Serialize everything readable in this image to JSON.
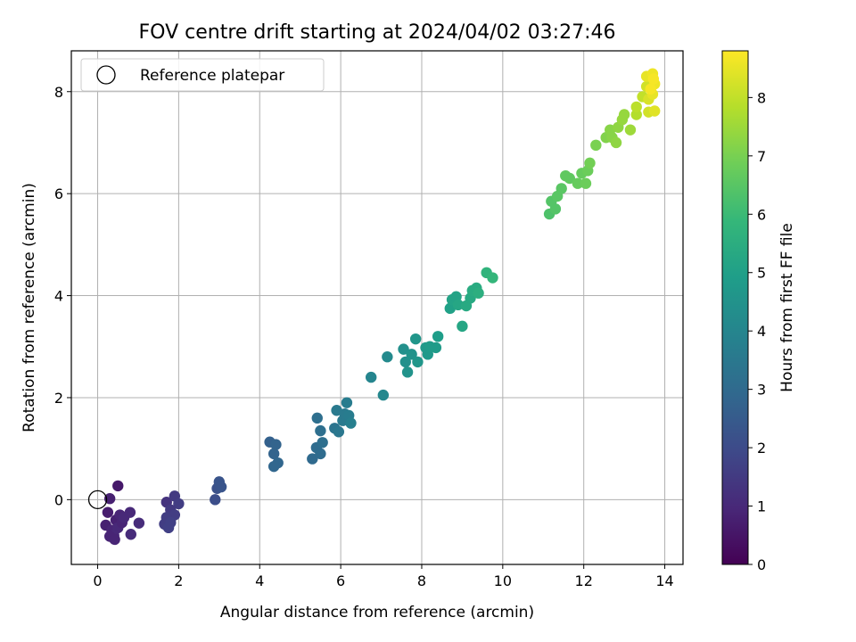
{
  "chart_data": {
    "type": "scatter",
    "title": "FOV centre drift starting at 2024/04/02 03:27:46",
    "xlabel": "Angular distance from reference (arcmin)",
    "ylabel": "Rotation from reference (arcmin)",
    "xlim": [
      -0.65,
      14.45
    ],
    "ylim": [
      -1.27,
      8.8
    ],
    "x_ticks": [
      0,
      2,
      4,
      6,
      8,
      10,
      12,
      14
    ],
    "y_ticks": [
      0,
      2,
      4,
      6,
      8
    ],
    "grid": true,
    "legend": {
      "location": "top-left",
      "entries": [
        "Reference platepar"
      ]
    },
    "reference_point": {
      "x": 0,
      "y": 0
    },
    "colorbar": {
      "label": "Hours from first FF file",
      "range": [
        0,
        8.8
      ],
      "ticks": [
        0,
        1,
        2,
        3,
        4,
        5,
        6,
        7,
        8
      ],
      "colormap": "viridis"
    },
    "points": [
      {
        "x": 0.5,
        "y": 0.27,
        "h": 0.6
      },
      {
        "x": 0.3,
        "y": 0.02,
        "h": 0.8
      },
      {
        "x": 0.25,
        "y": -0.25,
        "h": 0.7
      },
      {
        "x": 0.45,
        "y": -0.4,
        "h": 0.8
      },
      {
        "x": 0.55,
        "y": -0.3,
        "h": 0.9
      },
      {
        "x": 0.2,
        "y": -0.5,
        "h": 0.8
      },
      {
        "x": 0.35,
        "y": -0.6,
        "h": 0.9
      },
      {
        "x": 0.5,
        "y": -0.55,
        "h": 1.0
      },
      {
        "x": 0.4,
        "y": -0.7,
        "h": 1.0
      },
      {
        "x": 0.3,
        "y": -0.72,
        "h": 0.9
      },
      {
        "x": 0.42,
        "y": -0.78,
        "h": 0.9
      },
      {
        "x": 0.6,
        "y": -0.45,
        "h": 0.9
      },
      {
        "x": 0.65,
        "y": -0.35,
        "h": 1.0
      },
      {
        "x": 0.8,
        "y": -0.25,
        "h": 1.0
      },
      {
        "x": 0.82,
        "y": -0.68,
        "h": 1.1
      },
      {
        "x": 1.02,
        "y": -0.46,
        "h": 1.1
      },
      {
        "x": 1.7,
        "y": -0.05,
        "h": 1.3
      },
      {
        "x": 1.9,
        "y": 0.07,
        "h": 1.5
      },
      {
        "x": 2.0,
        "y": -0.08,
        "h": 1.6
      },
      {
        "x": 1.8,
        "y": -0.2,
        "h": 1.5
      },
      {
        "x": 1.9,
        "y": -0.3,
        "h": 1.6
      },
      {
        "x": 1.7,
        "y": -0.35,
        "h": 1.6
      },
      {
        "x": 1.65,
        "y": -0.48,
        "h": 1.6
      },
      {
        "x": 1.75,
        "y": -0.55,
        "h": 1.7
      },
      {
        "x": 1.8,
        "y": -0.45,
        "h": 1.7
      },
      {
        "x": 2.9,
        "y": 0.0,
        "h": 2.1
      },
      {
        "x": 2.95,
        "y": 0.22,
        "h": 2.2
      },
      {
        "x": 3.0,
        "y": 0.35,
        "h": 2.3
      },
      {
        "x": 3.05,
        "y": 0.25,
        "h": 2.3
      },
      {
        "x": 4.25,
        "y": 1.13,
        "h": 2.7
      },
      {
        "x": 4.4,
        "y": 1.08,
        "h": 2.8
      },
      {
        "x": 4.35,
        "y": 0.9,
        "h": 2.8
      },
      {
        "x": 4.45,
        "y": 0.72,
        "h": 2.9
      },
      {
        "x": 4.35,
        "y": 0.65,
        "h": 2.9
      },
      {
        "x": 5.3,
        "y": 0.8,
        "h": 3.0
      },
      {
        "x": 5.4,
        "y": 1.02,
        "h": 3.1
      },
      {
        "x": 5.5,
        "y": 0.9,
        "h": 3.1
      },
      {
        "x": 5.55,
        "y": 1.12,
        "h": 3.2
      },
      {
        "x": 5.5,
        "y": 1.35,
        "h": 3.2
      },
      {
        "x": 5.42,
        "y": 1.6,
        "h": 3.2
      },
      {
        "x": 5.85,
        "y": 1.4,
        "h": 3.4
      },
      {
        "x": 5.95,
        "y": 1.33,
        "h": 3.5
      },
      {
        "x": 5.9,
        "y": 1.75,
        "h": 3.6
      },
      {
        "x": 6.05,
        "y": 1.55,
        "h": 3.6
      },
      {
        "x": 6.1,
        "y": 1.68,
        "h": 3.6
      },
      {
        "x": 6.15,
        "y": 1.9,
        "h": 3.7
      },
      {
        "x": 6.2,
        "y": 1.65,
        "h": 3.7
      },
      {
        "x": 6.25,
        "y": 1.5,
        "h": 3.8
      },
      {
        "x": 6.75,
        "y": 2.4,
        "h": 4.0
      },
      {
        "x": 7.05,
        "y": 2.05,
        "h": 4.1
      },
      {
        "x": 7.15,
        "y": 2.8,
        "h": 4.2
      },
      {
        "x": 7.55,
        "y": 2.95,
        "h": 4.4
      },
      {
        "x": 7.6,
        "y": 2.7,
        "h": 4.4
      },
      {
        "x": 7.65,
        "y": 2.5,
        "h": 4.5
      },
      {
        "x": 7.75,
        "y": 2.85,
        "h": 4.5
      },
      {
        "x": 7.85,
        "y": 3.15,
        "h": 4.6
      },
      {
        "x": 7.9,
        "y": 2.7,
        "h": 4.6
      },
      {
        "x": 8.1,
        "y": 2.98,
        "h": 4.7
      },
      {
        "x": 8.15,
        "y": 2.85,
        "h": 4.7
      },
      {
        "x": 8.2,
        "y": 3.0,
        "h": 4.8
      },
      {
        "x": 8.35,
        "y": 2.98,
        "h": 4.8
      },
      {
        "x": 8.4,
        "y": 3.2,
        "h": 4.9
      },
      {
        "x": 8.7,
        "y": 3.75,
        "h": 5.0
      },
      {
        "x": 8.75,
        "y": 3.92,
        "h": 5.1
      },
      {
        "x": 8.85,
        "y": 3.98,
        "h": 5.1
      },
      {
        "x": 8.9,
        "y": 3.82,
        "h": 5.2
      },
      {
        "x": 9.0,
        "y": 3.4,
        "h": 5.2
      },
      {
        "x": 9.1,
        "y": 3.8,
        "h": 5.3
      },
      {
        "x": 9.2,
        "y": 3.95,
        "h": 5.3
      },
      {
        "x": 9.25,
        "y": 4.1,
        "h": 5.4
      },
      {
        "x": 9.35,
        "y": 4.15,
        "h": 5.4
      },
      {
        "x": 9.4,
        "y": 4.05,
        "h": 5.5
      },
      {
        "x": 9.6,
        "y": 4.45,
        "h": 5.7
      },
      {
        "x": 9.75,
        "y": 4.35,
        "h": 5.8
      },
      {
        "x": 11.15,
        "y": 5.6,
        "h": 6.3
      },
      {
        "x": 11.2,
        "y": 5.85,
        "h": 6.4
      },
      {
        "x": 11.3,
        "y": 5.7,
        "h": 6.4
      },
      {
        "x": 11.35,
        "y": 5.95,
        "h": 6.5
      },
      {
        "x": 11.45,
        "y": 6.1,
        "h": 6.5
      },
      {
        "x": 11.55,
        "y": 6.35,
        "h": 6.6
      },
      {
        "x": 11.65,
        "y": 6.3,
        "h": 6.6
      },
      {
        "x": 11.85,
        "y": 6.2,
        "h": 6.7
      },
      {
        "x": 11.95,
        "y": 6.4,
        "h": 6.7
      },
      {
        "x": 12.05,
        "y": 6.2,
        "h": 6.8
      },
      {
        "x": 12.1,
        "y": 6.45,
        "h": 6.8
      },
      {
        "x": 12.15,
        "y": 6.6,
        "h": 6.9
      },
      {
        "x": 12.3,
        "y": 6.95,
        "h": 7.0
      },
      {
        "x": 12.55,
        "y": 7.1,
        "h": 7.1
      },
      {
        "x": 12.65,
        "y": 7.25,
        "h": 7.2
      },
      {
        "x": 12.7,
        "y": 7.1,
        "h": 7.2
      },
      {
        "x": 12.8,
        "y": 7.0,
        "h": 7.3
      },
      {
        "x": 12.85,
        "y": 7.3,
        "h": 7.3
      },
      {
        "x": 12.95,
        "y": 7.45,
        "h": 7.4
      },
      {
        "x": 13.0,
        "y": 7.55,
        "h": 7.4
      },
      {
        "x": 13.15,
        "y": 7.25,
        "h": 7.5
      },
      {
        "x": 13.3,
        "y": 7.55,
        "h": 7.8
      },
      {
        "x": 13.3,
        "y": 7.7,
        "h": 7.9
      },
      {
        "x": 13.45,
        "y": 7.9,
        "h": 8.0
      },
      {
        "x": 13.55,
        "y": 8.1,
        "h": 8.2
      },
      {
        "x": 13.6,
        "y": 7.85,
        "h": 8.3
      },
      {
        "x": 13.6,
        "y": 7.6,
        "h": 8.2
      },
      {
        "x": 13.55,
        "y": 8.3,
        "h": 8.5
      },
      {
        "x": 13.7,
        "y": 8.35,
        "h": 8.6
      },
      {
        "x": 13.75,
        "y": 8.15,
        "h": 8.6
      },
      {
        "x": 13.7,
        "y": 7.95,
        "h": 8.5
      },
      {
        "x": 13.75,
        "y": 7.62,
        "h": 8.4
      },
      {
        "x": 13.65,
        "y": 8.05,
        "h": 8.7
      },
      {
        "x": 13.72,
        "y": 8.25,
        "h": 8.7
      }
    ]
  }
}
